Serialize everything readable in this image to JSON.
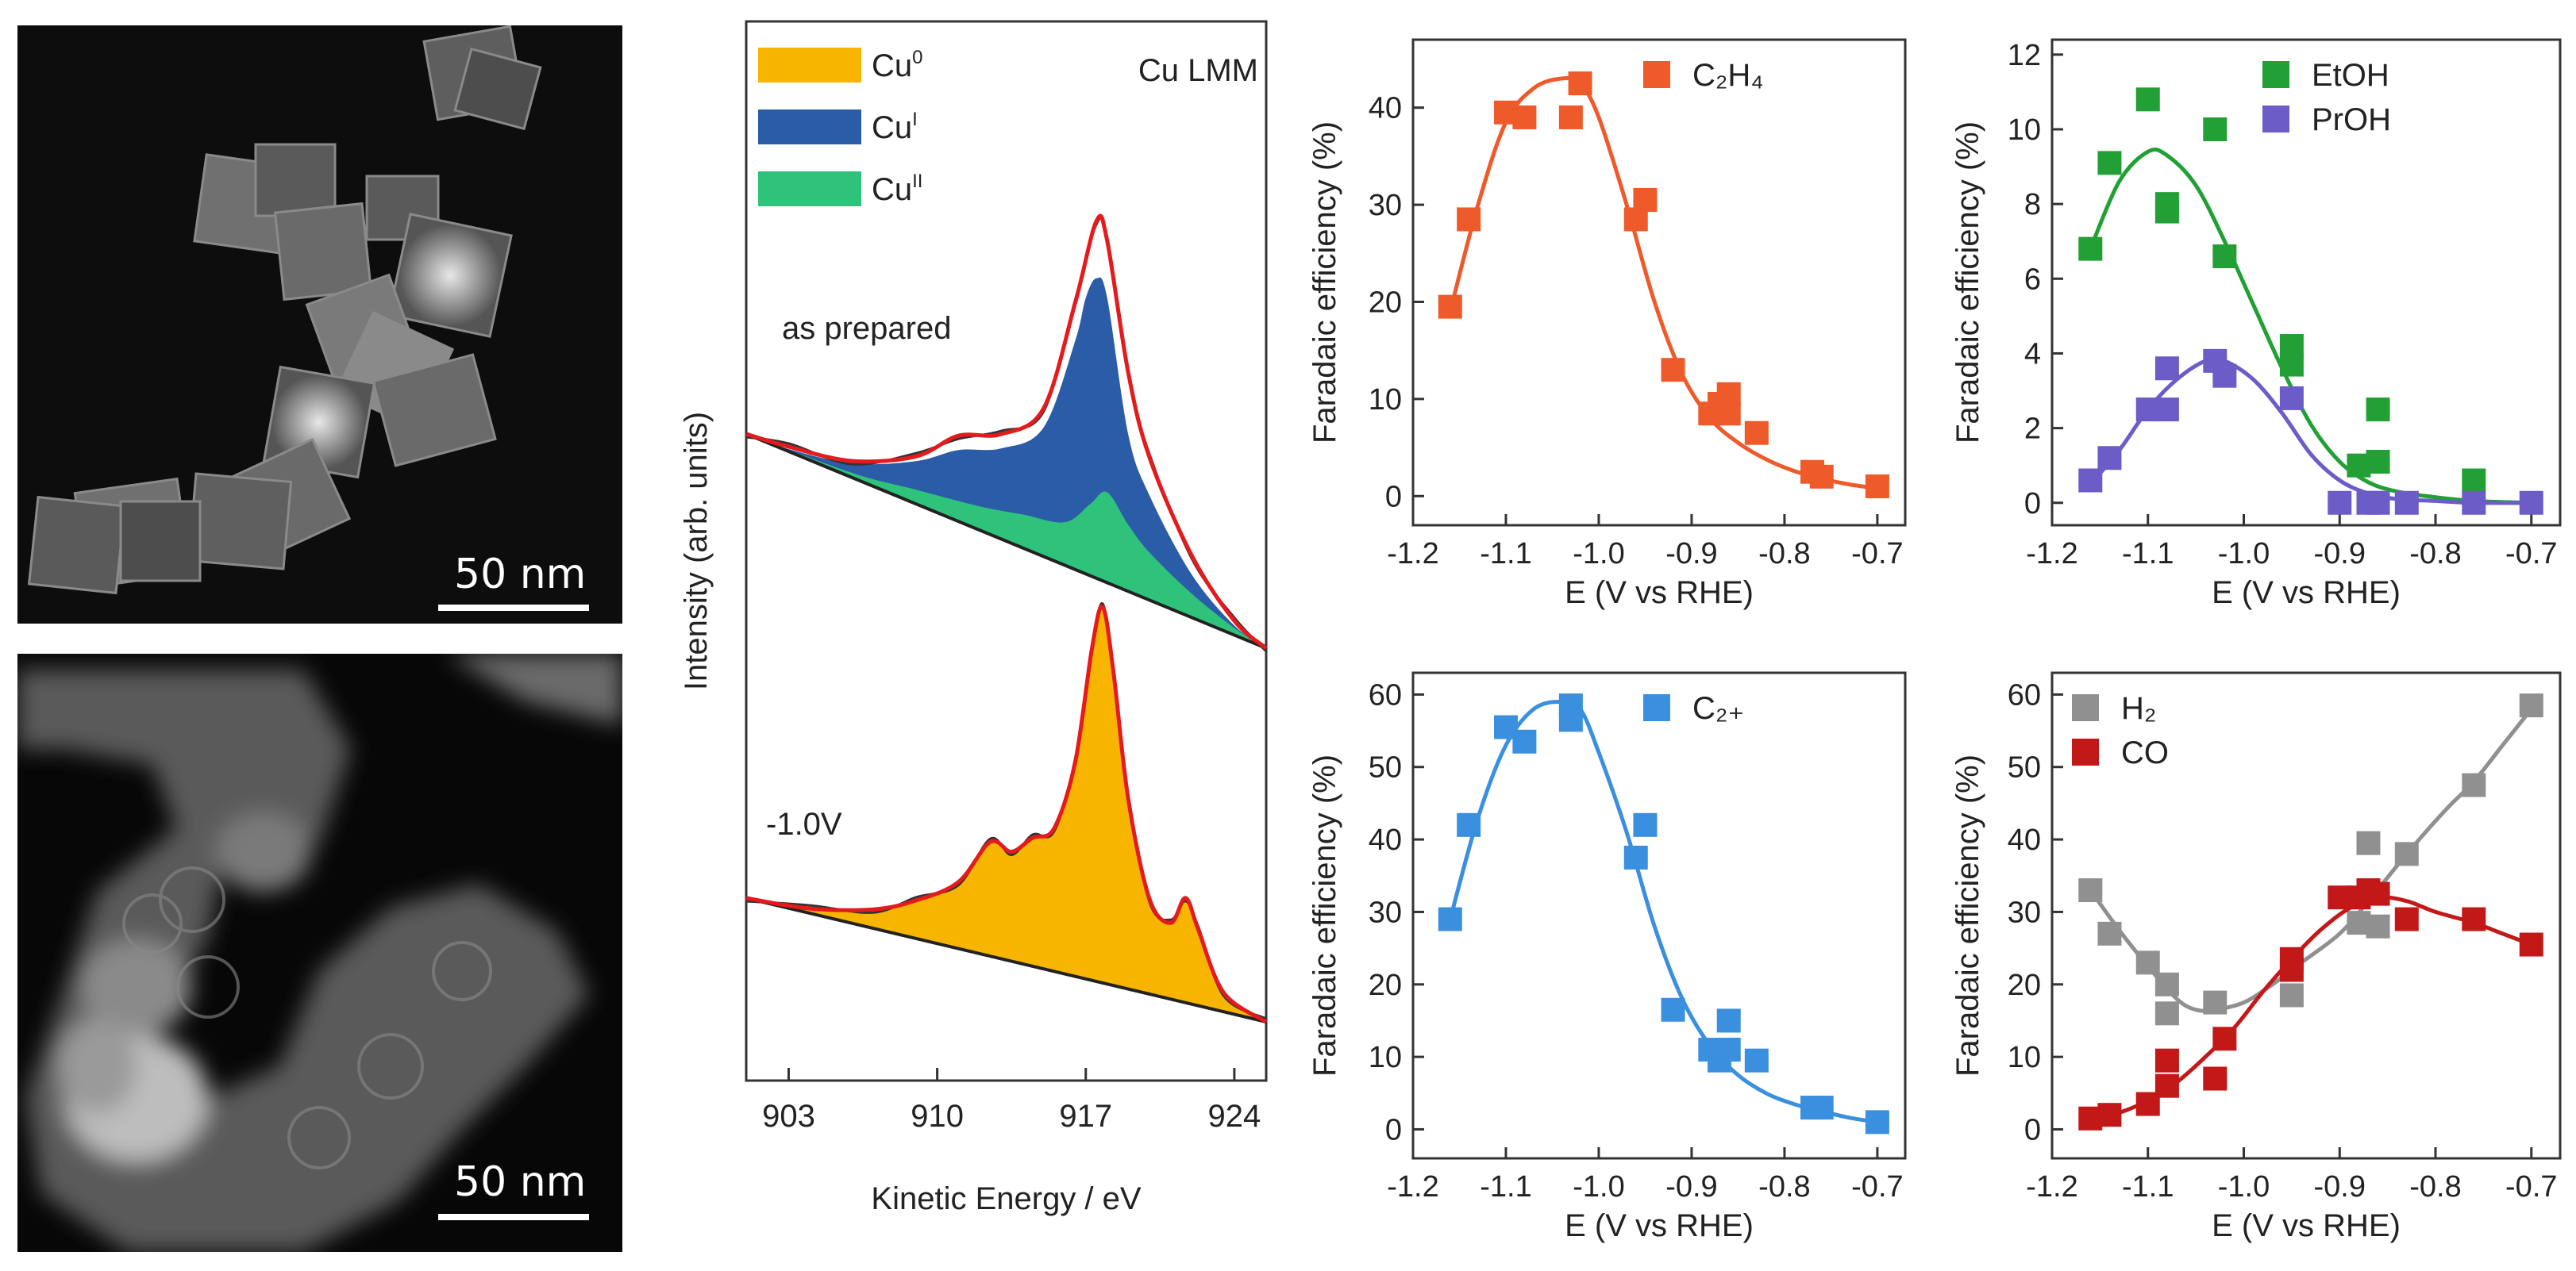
{
  "tem_top": {
    "scale_label": "50 nm"
  },
  "tem_bottom": {
    "scale_label": "50 nm"
  },
  "colors": {
    "c2h4": "#EE5A2A",
    "c2plus": "#3A8FDE",
    "etoh": "#22A035",
    "proh": "#6C5CC8",
    "h2": "#909090",
    "co": "#C21818",
    "cu0": "#F7B500",
    "cu1": "#2A5CA8",
    "cu2": "#2FC27A",
    "fit_red": "#E41A1C"
  },
  "chart_data": [
    {
      "id": "xps",
      "type": "area",
      "title": "Cu LMM",
      "xlabel": "Kinetic Energy / eV",
      "ylabel": "Intensity (arb. units)",
      "xlim": [
        901,
        925.5
      ],
      "xticks": [
        903,
        910,
        917,
        924
      ],
      "legend": [
        {
          "label": "Cu",
          "sup": "0",
          "color": "#F7B500"
        },
        {
          "label": "Cu",
          "sup": "I",
          "color": "#2A5CA8"
        },
        {
          "label": "Cu",
          "sup": "II",
          "color": "#2FC27A"
        }
      ],
      "annotations": [
        "as prepared",
        "-1.0V"
      ],
      "spectra": [
        {
          "name": "as prepared",
          "baseline": [
            [
              901,
              0.0
            ],
            [
              925.5,
              -4.5
            ]
          ],
          "cu1": [
            [
              901,
              0
            ],
            [
              903,
              0.05
            ],
            [
              906,
              0.3
            ],
            [
              909,
              0.9
            ],
            [
              911,
              1.5
            ],
            [
              913,
              1.9
            ],
            [
              915,
              2.7
            ],
            [
              916.5,
              4.8
            ],
            [
              917,
              5.8
            ],
            [
              917.5,
              6.3
            ],
            [
              918,
              6.0
            ],
            [
              919,
              3.3
            ],
            [
              920,
              2.2
            ],
            [
              922,
              0.9
            ],
            [
              924,
              0.2
            ],
            [
              925.5,
              0
            ]
          ],
          "cu2": [
            [
              901,
              0
            ],
            [
              906,
              0.1
            ],
            [
              909,
              0.3
            ],
            [
              912,
              0.5
            ],
            [
              914,
              0.7
            ],
            [
              916,
              0.9
            ],
            [
              917.2,
              1.5
            ],
            [
              918,
              1.9
            ],
            [
              919,
              1.4
            ],
            [
              920,
              1.0
            ],
            [
              922,
              0.5
            ],
            [
              924,
              0.15
            ],
            [
              925.5,
              0
            ]
          ],
          "envelope": [
            [
              901,
              0
            ],
            [
              903,
              0.1
            ],
            [
              906,
              0.35
            ],
            [
              909,
              1.0
            ],
            [
              911,
              1.8
            ],
            [
              913,
              2.2
            ],
            [
              915,
              3.1
            ],
            [
              916.5,
              5.6
            ],
            [
              917.5,
              7.5
            ],
            [
              918,
              7.2
            ],
            [
              919,
              4.6
            ],
            [
              920,
              3.0
            ],
            [
              922,
              1.3
            ],
            [
              924,
              0.3
            ],
            [
              925.5,
              0
            ]
          ]
        },
        {
          "name": "-1.0V",
          "baseline": [
            [
              901,
              0.0
            ],
            [
              925.5,
              -2.6
            ]
          ],
          "cu0": [
            [
              901,
              0
            ],
            [
              904,
              0.1
            ],
            [
              907,
              0.4
            ],
            [
              909,
              0.8
            ],
            [
              911,
              1.4
            ],
            [
              912.5,
              2.4
            ],
            [
              913.5,
              2.3
            ],
            [
              914.5,
              2.7
            ],
            [
              915.5,
              3.0
            ],
            [
              916.5,
              4.5
            ],
            [
              917.3,
              7.0
            ],
            [
              917.8,
              7.9
            ],
            [
              918.3,
              6.6
            ],
            [
              919,
              4.0
            ],
            [
              920,
              2.0
            ],
            [
              921,
              1.6
            ],
            [
              921.7,
              2.2
            ],
            [
              922.3,
              1.6
            ],
            [
              923.5,
              0.4
            ],
            [
              925.5,
              0
            ]
          ]
        }
      ]
    },
    {
      "id": "c2h4",
      "type": "scatter",
      "xlabel": "E (V vs RHE)",
      "ylabel": "Faradaic efficiency (%)",
      "xlim": [
        -1.2,
        -0.67
      ],
      "ylim": [
        -3,
        47
      ],
      "xticks": [
        -1.2,
        -1.1,
        -1.0,
        -0.9,
        -0.8,
        -0.7
      ],
      "xtick_labels": [
        "-1.2",
        "-1.1",
        "-1.0",
        "-0.9",
        "-0.8",
        "-0.7"
      ],
      "yticks": [
        0,
        10,
        20,
        30,
        40
      ],
      "series": [
        {
          "name": "C₂H₄",
          "color": "#EE5A2A",
          "x": [
            -1.16,
            -1.14,
            -1.1,
            -1.08,
            -1.03,
            -1.02,
            -0.96,
            -0.95,
            -0.92,
            -0.88,
            -0.87,
            -0.86,
            -0.86,
            -0.83,
            -0.77,
            -0.76,
            -0.7
          ],
          "y": [
            19.5,
            28.5,
            39.5,
            39,
            39,
            42.5,
            28.5,
            30.5,
            13,
            8.5,
            9.5,
            10.5,
            8.5,
            6.5,
            2.5,
            2,
            1
          ],
          "fit_x": [
            -1.16,
            -1.13,
            -1.1,
            -1.07,
            -1.04,
            -1.02,
            -1.0,
            -0.97,
            -0.94,
            -0.91,
            -0.88,
            -0.85,
            -0.82,
            -0.79,
            -0.76,
            -0.73,
            -0.7
          ],
          "fit_y": [
            19,
            30,
            38.5,
            42,
            43,
            42.5,
            39,
            30,
            20,
            12.5,
            8,
            5.5,
            3.8,
            2.6,
            1.8,
            1.2,
            0.8
          ]
        }
      ]
    },
    {
      "id": "alcohols",
      "type": "scatter",
      "xlabel": "E (V vs RHE)",
      "ylabel": "Faradaic efficiency (%)",
      "xlim": [
        -1.2,
        -0.67
      ],
      "ylim": [
        -0.6,
        12.4
      ],
      "xticks": [
        -1.2,
        -1.1,
        -1.0,
        -0.9,
        -0.8,
        -0.7
      ],
      "xtick_labels": [
        "-1.2",
        "-1.1",
        "-1.0",
        "-0.9",
        "-0.8",
        "-0.7"
      ],
      "yticks": [
        0,
        2,
        4,
        6,
        8,
        10,
        12
      ],
      "series": [
        {
          "name": "EtOH",
          "color": "#22A035",
          "x": [
            -1.16,
            -1.14,
            -1.1,
            -1.08,
            -1.08,
            -1.03,
            -1.02,
            -0.95,
            -0.95,
            -0.88,
            -0.86,
            -0.86,
            -0.76
          ],
          "y": [
            6.8,
            9.1,
            10.8,
            7.8,
            8.0,
            10.0,
            6.6,
            4.2,
            3.7,
            1.0,
            1.1,
            2.5,
            0.6
          ],
          "fit_x": [
            -1.16,
            -1.13,
            -1.1,
            -1.08,
            -1.05,
            -1.02,
            -0.99,
            -0.96,
            -0.93,
            -0.9,
            -0.87,
            -0.84,
            -0.8,
            -0.76,
            -0.7
          ],
          "fit_y": [
            6.8,
            8.6,
            9.4,
            9.3,
            8.5,
            7.0,
            5.3,
            3.6,
            2.1,
            1.1,
            0.55,
            0.3,
            0.15,
            0.05,
            0
          ]
        },
        {
          "name": "PrOH",
          "color": "#6C5CC8",
          "x": [
            -1.16,
            -1.14,
            -1.1,
            -1.08,
            -1.08,
            -1.03,
            -1.02,
            -0.95,
            -0.9,
            -0.87,
            -0.86,
            -0.83,
            -0.76,
            -0.7
          ],
          "y": [
            0.6,
            1.2,
            2.5,
            3.6,
            2.5,
            3.8,
            3.4,
            2.8,
            0,
            0,
            0,
            0,
            0,
            0
          ],
          "fit_x": [
            -1.16,
            -1.13,
            -1.1,
            -1.07,
            -1.04,
            -1.02,
            -0.99,
            -0.96,
            -0.93,
            -0.9,
            -0.87,
            -0.84,
            -0.8,
            -0.76,
            -0.7
          ],
          "fit_y": [
            0.5,
            1.4,
            2.5,
            3.3,
            3.8,
            3.8,
            3.3,
            2.4,
            1.3,
            0.6,
            0.25,
            0.1,
            0.05,
            0,
            0
          ]
        }
      ]
    },
    {
      "id": "c2plus",
      "type": "scatter",
      "xlabel": "E (V vs RHE)",
      "ylabel": "Faradaic efficiency (%)",
      "xlim": [
        -1.2,
        -0.67
      ],
      "ylim": [
        -4,
        63
      ],
      "xticks": [
        -1.2,
        -1.1,
        -1.0,
        -0.9,
        -0.8,
        -0.7
      ],
      "xtick_labels": [
        "-1.2",
        "-1.1",
        "-1.0",
        "-0.9",
        "-0.8",
        "-0.7"
      ],
      "yticks": [
        0,
        10,
        20,
        30,
        40,
        50,
        60
      ],
      "series": [
        {
          "name": "C₂₊",
          "color": "#3A8FDE",
          "x": [
            -1.16,
            -1.14,
            -1.1,
            -1.08,
            -1.03,
            -1.03,
            -0.96,
            -0.95,
            -0.92,
            -0.88,
            -0.87,
            -0.86,
            -0.86,
            -0.83,
            -0.77,
            -0.76,
            -0.7
          ],
          "y": [
            29,
            42,
            55.5,
            53.5,
            56.5,
            58.5,
            37.5,
            42,
            16.5,
            11,
            9.5,
            15,
            11,
            9.5,
            3,
            3,
            1
          ],
          "fit_x": [
            -1.16,
            -1.13,
            -1.1,
            -1.07,
            -1.04,
            -1.02,
            -1.0,
            -0.97,
            -0.94,
            -0.91,
            -0.88,
            -0.85,
            -0.82,
            -0.79,
            -0.76,
            -0.73,
            -0.7
          ],
          "fit_y": [
            29,
            43,
            53,
            58,
            59,
            58,
            52,
            41,
            28,
            18,
            11.5,
            7.5,
            5,
            3.5,
            2.5,
            1.6,
            1
          ]
        }
      ]
    },
    {
      "id": "h2co",
      "type": "scatter",
      "xlabel": "E (V vs RHE)",
      "ylabel": "Faradaic efficiency (%)",
      "xlim": [
        -1.2,
        -0.67
      ],
      "ylim": [
        -4,
        63
      ],
      "xticks": [
        -1.2,
        -1.1,
        -1.0,
        -0.9,
        -0.8,
        -0.7
      ],
      "xtick_labels": [
        "-1.2",
        "-1.1",
        "-1.0",
        "-0.9",
        "-0.8",
        "-0.7"
      ],
      "yticks": [
        0,
        10,
        20,
        30,
        40,
        50,
        60
      ],
      "series": [
        {
          "name": "H₂",
          "color": "#909090",
          "x": [
            -1.16,
            -1.14,
            -1.1,
            -1.08,
            -1.08,
            -1.03,
            -0.95,
            -0.88,
            -0.87,
            -0.86,
            -0.83,
            -0.76,
            -0.7
          ],
          "y": [
            33,
            27,
            23,
            16,
            20,
            17.5,
            18.5,
            28.5,
            39.5,
            28,
            38,
            47.5,
            58.5
          ],
          "fit_x": [
            -1.16,
            -1.13,
            -1.1,
            -1.07,
            -1.05,
            -1.03,
            -1.0,
            -0.97,
            -0.94,
            -0.9,
            -0.87,
            -0.83,
            -0.79,
            -0.76,
            -0.73,
            -0.7
          ],
          "fit_y": [
            33,
            27.5,
            22.5,
            18,
            16.5,
            16.5,
            17.5,
            20,
            23,
            27,
            31.5,
            38,
            44,
            48,
            53,
            58
          ]
        },
        {
          "name": "CO",
          "color": "#C21818",
          "x": [
            -1.16,
            -1.14,
            -1.1,
            -1.08,
            -1.08,
            -1.03,
            -1.02,
            -0.95,
            -0.95,
            -0.9,
            -0.88,
            -0.87,
            -0.86,
            -0.83,
            -0.76,
            -0.7
          ],
          "y": [
            1.5,
            2,
            3.5,
            9.5,
            6,
            7,
            12.5,
            23.5,
            22,
            32,
            32,
            33,
            32.5,
            29,
            29,
            25.5
          ],
          "fit_x": [
            -1.16,
            -1.13,
            -1.1,
            -1.07,
            -1.04,
            -1.01,
            -0.98,
            -0.95,
            -0.92,
            -0.89,
            -0.86,
            -0.83,
            -0.8,
            -0.76,
            -0.73,
            -0.7
          ],
          "fit_y": [
            1.5,
            2.3,
            4,
            6.5,
            10,
            14,
            19,
            23.5,
            27.5,
            30.5,
            32,
            31.5,
            30,
            28.5,
            27,
            25.5
          ]
        }
      ]
    }
  ]
}
